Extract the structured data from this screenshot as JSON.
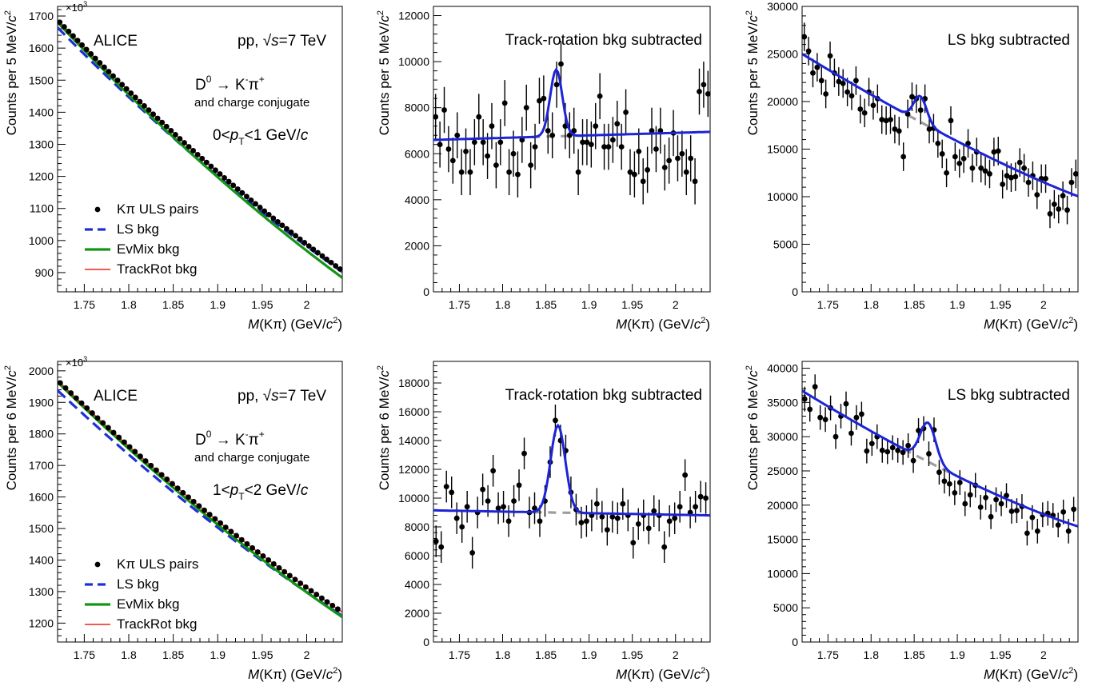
{
  "figure": {
    "label": "ALICE"
  },
  "panel_text": {
    "collision": "pp,",
    "energy": "s=7 TeV",
    "decay_d": "D",
    "decay_d_sup": "0",
    "decay_arrow": "→ K",
    "decay_k_sup": "-",
    "decay_pi": "π",
    "decay_pi_sup": "+",
    "conjugate": "and charge conjugate",
    "pt_bins": [
      [
        "0<",
        "p",
        "T",
        "<1 GeV/",
        "c"
      ],
      [
        "1<",
        "p",
        "T",
        "<2 GeV/",
        "c"
      ]
    ],
    "legend": [
      "Kπ ULS pairs",
      "LS bkg",
      "EvMix bkg",
      "TrackRot bkg"
    ],
    "x_axis": [
      "M",
      "(Kπ) (GeV/",
      "c",
      "2",
      ")"
    ],
    "y_axis_row1": [
      "Counts per 5 MeV/",
      "c",
      "2"
    ],
    "y_axis_row2": [
      "Counts per 6 MeV/",
      "c",
      "2"
    ],
    "exponent": "×10",
    "exponent_sup": "3",
    "track_rotation": "Track-rotation bkg subtracted",
    "ls": "LS bkg subtracted"
  },
  "chart_data": [
    {
      "type": "scatter",
      "title": "",
      "xlabel": "M(Kπ) (GeV/c2)",
      "ylabel": "Counts per 5 MeV/c2",
      "y_multiplier": "×10^3",
      "xlim": [
        1.72,
        2.04
      ],
      "ylim": [
        840,
        1730
      ],
      "x_ticks": [
        "1.75",
        "1.8",
        "1.85",
        "1.9",
        "1.95",
        "2"
      ],
      "y_ticks": [
        "900",
        "1000",
        "1100",
        "1200",
        "1300",
        "1400",
        "1500",
        "1600",
        "1700"
      ],
      "curve_model": {
        "kind": "poly2",
        "x0": 1.72,
        "y0": 1688,
        "y1": 906,
        "c": 1500
      },
      "series": [
        {
          "name": "Kπ ULS pairs",
          "style": "points",
          "color": "#000000",
          "x_start": 1.7225,
          "x_step": 0.005,
          "count": 64
        },
        {
          "name": "LS bkg",
          "style": "dashed",
          "color": "#1f2fd6",
          "y_offset_start": -24,
          "y_offset_end": -4
        },
        {
          "name": "EvMix bkg",
          "style": "solid",
          "color": "#129612",
          "y_offset_start": -8,
          "y_offset_end": -22
        },
        {
          "name": "TrackRot bkg",
          "style": "solid",
          "color": "#e8251c",
          "y_offset_start": 0,
          "y_offset_end": 0
        }
      ],
      "text_lines": [
        "ALICE",
        "pp, √s=7 TeV",
        "D0 → K-π+",
        "and charge conjugate",
        "0<pT<1 GeV/c"
      ]
    },
    {
      "type": "scatter",
      "title": "Track-rotation bkg subtracted",
      "xlabel": "M(Kπ) (GeV/c2)",
      "ylabel": "Counts per 5 MeV/c2",
      "xlim": [
        1.72,
        2.04
      ],
      "ylim": [
        0,
        12400
      ],
      "x_ticks": [
        "1.75",
        "1.8",
        "1.85",
        "1.9",
        "1.95",
        "2"
      ],
      "y_ticks": [
        "0",
        "2000",
        "4000",
        "6000",
        "8000",
        "10000",
        "12000"
      ],
      "x": [
        1.7225,
        1.7275,
        1.7325,
        1.7375,
        1.7425,
        1.7475,
        1.7525,
        1.7575,
        1.7625,
        1.7675,
        1.7725,
        1.7775,
        1.7825,
        1.7875,
        1.7925,
        1.7975,
        1.8025,
        1.8075,
        1.8125,
        1.8175,
        1.8225,
        1.8275,
        1.8325,
        1.8375,
        1.8425,
        1.8475,
        1.8525,
        1.8575,
        1.8625,
        1.8675,
        1.8725,
        1.8775,
        1.8825,
        1.8875,
        1.8925,
        1.8975,
        1.9025,
        1.9075,
        1.9125,
        1.9175,
        1.9225,
        1.9275,
        1.9325,
        1.9375,
        1.9425,
        1.9475,
        1.9525,
        1.9575,
        1.9625,
        1.9675,
        1.9725,
        1.9775,
        1.9825,
        1.9875,
        1.9925,
        1.9975,
        2.0025,
        2.0075,
        2.0125,
        2.0175,
        2.0225,
        2.0275,
        2.0325,
        2.0375
      ],
      "y": [
        7600,
        6400,
        7900,
        6200,
        5700,
        6800,
        5200,
        6100,
        5200,
        6500,
        7600,
        6500,
        5900,
        7200,
        5500,
        6500,
        8200,
        5200,
        6000,
        5100,
        6600,
        8000,
        5500,
        6300,
        8300,
        8400,
        7000,
        6800,
        9000,
        9900,
        7200,
        6800,
        7000,
        5200,
        6500,
        6500,
        6400,
        7200,
        8500,
        6300,
        6300,
        6600,
        7300,
        6300,
        7800,
        5200,
        5100,
        6100,
        4800,
        5300,
        7000,
        6200,
        7000,
        5400,
        5700,
        6900,
        5800,
        6000,
        5200,
        5800,
        4800,
        8700,
        9000,
        8600
      ],
      "err": 1000,
      "series": [
        {
          "name": "fit",
          "style": "solid",
          "color": "#1c24d6",
          "bkg_at_min": 6600,
          "bkg_at_max": 6950,
          "peak_mean": 1.862,
          "peak_sigma": 0.007,
          "peak_height": 2900
        },
        {
          "name": "background",
          "style": "dashed",
          "color": "#9e9e9e"
        }
      ]
    },
    {
      "type": "scatter",
      "title": "LS bkg subtracted",
      "xlabel": "M(Kπ) (GeV/c2)",
      "ylabel": "Counts per 5 MeV/c2",
      "xlim": [
        1.72,
        2.04
      ],
      "ylim": [
        0,
        30000
      ],
      "x_ticks": [
        "1.75",
        "1.8",
        "1.85",
        "1.9",
        "1.95",
        "2"
      ],
      "y_ticks": [
        "0",
        "5000",
        "10000",
        "15000",
        "20000",
        "25000",
        "30000"
      ],
      "x": [
        1.7225,
        1.7275,
        1.7325,
        1.7375,
        1.7425,
        1.7475,
        1.7525,
        1.7575,
        1.7625,
        1.7675,
        1.7725,
        1.7775,
        1.7825,
        1.7875,
        1.7925,
        1.7975,
        1.8025,
        1.8075,
        1.8125,
        1.8175,
        1.8225,
        1.8275,
        1.8325,
        1.8375,
        1.8425,
        1.8475,
        1.8525,
        1.8575,
        1.8625,
        1.8675,
        1.8725,
        1.8775,
        1.8825,
        1.8875,
        1.8925,
        1.8975,
        1.9025,
        1.9075,
        1.9125,
        1.9175,
        1.9225,
        1.9275,
        1.9325,
        1.9375,
        1.9425,
        1.9475,
        1.9525,
        1.9575,
        1.9625,
        1.9675,
        1.9725,
        1.9775,
        1.9825,
        1.9875,
        1.9925,
        1.9975,
        2.0025,
        2.0075,
        2.0125,
        2.0175,
        2.0225,
        2.0275,
        2.0325,
        2.0375
      ],
      "y": [
        26800,
        25300,
        23000,
        23600,
        22200,
        20800,
        24800,
        23000,
        22100,
        21900,
        21000,
        20600,
        22200,
        19200,
        18800,
        21000,
        19600,
        20300,
        18100,
        18000,
        18100,
        17100,
        16900,
        14200,
        18700,
        20500,
        20300,
        19100,
        20300,
        17100,
        17200,
        15600,
        14500,
        12500,
        18000,
        14200,
        13500,
        14000,
        15600,
        13000,
        14700,
        13000,
        12700,
        12400,
        14700,
        14800,
        11300,
        12200,
        12000,
        12100,
        13600,
        13000,
        11500,
        12200,
        10200,
        11900,
        11900,
        8200,
        9200,
        8700,
        10100,
        8600,
        11500,
        12400
      ],
      "err": 1500,
      "series": [
        {
          "name": "fit",
          "style": "solid",
          "color": "#1c24d6",
          "bkg_at_min": 25000,
          "bkg_at_max": 10050,
          "bkg_shape": 0.94,
          "peak_mean": 1.857,
          "peak_sigma": 0.0075,
          "peak_height": 2700
        },
        {
          "name": "background",
          "style": "dashed",
          "color": "#9e9e9e"
        }
      ]
    },
    {
      "type": "scatter",
      "title": "",
      "xlabel": "M(Kπ) (GeV/c2)",
      "ylabel": "Counts per 6 MeV/c2",
      "y_multiplier": "×10^3",
      "xlim": [
        1.72,
        2.04
      ],
      "ylim": [
        1140,
        2030
      ],
      "x_ticks": [
        "1.75",
        "1.8",
        "1.85",
        "1.9",
        "1.95",
        "2"
      ],
      "y_ticks": [
        "1200",
        "1300",
        "1400",
        "1500",
        "1600",
        "1700",
        "1800",
        "1900",
        "2000"
      ],
      "curve_model": {
        "kind": "poly2",
        "x0": 1.72,
        "y0": 1970,
        "y1": 1235,
        "c": 1100
      },
      "series": [
        {
          "name": "Kπ ULS pairs",
          "style": "points",
          "color": "#000000",
          "x_start": 1.723,
          "x_step": 0.006,
          "count": 54
        },
        {
          "name": "LS bkg",
          "style": "dashed",
          "color": "#1f2fd6",
          "y_offset_start": -32,
          "y_offset_end": -12
        },
        {
          "name": "EvMix bkg",
          "style": "solid",
          "color": "#129612",
          "y_offset_start": -6,
          "y_offset_end": -16
        },
        {
          "name": "TrackRot bkg",
          "style": "solid",
          "color": "#e8251c",
          "y_offset_start": 0,
          "y_offset_end": 0
        }
      ],
      "text_lines": [
        "ALICE",
        "pp, √s=7 TeV",
        "D0 → K-π+",
        "and charge conjugate",
        "1<pT<2 GeV/c"
      ]
    },
    {
      "type": "scatter",
      "title": "Track-rotation bkg subtracted",
      "xlabel": "M(Kπ) (GeV/c2)",
      "ylabel": "Counts per 6 MeV/c2",
      "xlim": [
        1.72,
        2.04
      ],
      "ylim": [
        0,
        19500
      ],
      "x_ticks": [
        "1.75",
        "1.8",
        "1.85",
        "1.9",
        "1.95",
        "2"
      ],
      "y_ticks": [
        "0",
        "2000",
        "4000",
        "6000",
        "8000",
        "10000",
        "12000",
        "14000",
        "16000",
        "18000"
      ],
      "x": [
        1.723,
        1.729,
        1.735,
        1.741,
        1.747,
        1.753,
        1.759,
        1.765,
        1.771,
        1.777,
        1.783,
        1.789,
        1.795,
        1.801,
        1.807,
        1.813,
        1.819,
        1.825,
        1.831,
        1.837,
        1.843,
        1.849,
        1.855,
        1.861,
        1.867,
        1.873,
        1.879,
        1.885,
        1.891,
        1.897,
        1.903,
        1.909,
        1.915,
        1.921,
        1.927,
        1.933,
        1.939,
        1.945,
        1.951,
        1.957,
        1.963,
        1.969,
        1.975,
        1.981,
        1.987,
        1.993,
        1.999,
        2.005,
        2.011,
        2.017,
        2.023,
        2.029,
        2.035,
        2.041
      ],
      "y": [
        7000,
        6600,
        10800,
        10400,
        8600,
        8000,
        9400,
        6200,
        9000,
        10600,
        9800,
        11900,
        9300,
        9400,
        8400,
        9800,
        10900,
        13100,
        9000,
        9300,
        8400,
        9800,
        12500,
        15400,
        14000,
        13300,
        10400,
        9200,
        8300,
        8400,
        8800,
        9600,
        8700,
        7800,
        8700,
        8600,
        9600,
        8800,
        6900,
        8200,
        8800,
        7900,
        9100,
        8800,
        6600,
        8400,
        8600,
        9400,
        11600,
        9000,
        9400,
        10100,
        10000,
        9300
      ],
      "err": 1100,
      "series": [
        {
          "name": "fit",
          "style": "solid",
          "color": "#1c24d6",
          "bkg_at_min": 9150,
          "bkg_at_max": 8800,
          "peak_mean": 1.864,
          "peak_sigma": 0.0085,
          "peak_height": 6050
        },
        {
          "name": "background",
          "style": "dashed",
          "color": "#9e9e9e"
        }
      ]
    },
    {
      "type": "scatter",
      "title": "LS bkg subtracted",
      "xlabel": "M(Kπ) (GeV/c2)",
      "ylabel": "Counts per 6 MeV/c2",
      "xlim": [
        1.72,
        2.04
      ],
      "ylim": [
        0,
        41000
      ],
      "x_ticks": [
        "1.75",
        "1.8",
        "1.85",
        "1.9",
        "1.95",
        "2"
      ],
      "y_ticks": [
        "0",
        "5000",
        "10000",
        "15000",
        "20000",
        "25000",
        "30000",
        "35000",
        "40000"
      ],
      "x": [
        1.723,
        1.729,
        1.735,
        1.741,
        1.747,
        1.753,
        1.759,
        1.765,
        1.771,
        1.777,
        1.783,
        1.789,
        1.795,
        1.801,
        1.807,
        1.813,
        1.819,
        1.825,
        1.831,
        1.837,
        1.843,
        1.849,
        1.855,
        1.861,
        1.867,
        1.873,
        1.879,
        1.885,
        1.891,
        1.897,
        1.903,
        1.909,
        1.915,
        1.921,
        1.927,
        1.933,
        1.939,
        1.945,
        1.951,
        1.957,
        1.963,
        1.969,
        1.975,
        1.981,
        1.987,
        1.993,
        1.999,
        2.005,
        2.011,
        2.017,
        2.023,
        2.029,
        2.035,
        2.041
      ],
      "y": [
        35500,
        34000,
        37300,
        32800,
        32500,
        34200,
        30000,
        33000,
        34800,
        30500,
        32800,
        33300,
        27900,
        29000,
        30000,
        28000,
        27800,
        28400,
        28000,
        27700,
        28700,
        26500,
        30900,
        31200,
        27500,
        31000,
        24800,
        23500,
        23100,
        21800,
        23300,
        20200,
        21500,
        22900,
        19700,
        21100,
        18300,
        20800,
        20200,
        21400,
        19100,
        19200,
        19800,
        15900,
        18200,
        16200,
        18600,
        18800,
        18500,
        17100,
        19000,
        16200,
        19400,
        17700
      ],
      "err": 1800,
      "series": [
        {
          "name": "fit",
          "style": "solid",
          "color": "#1c24d6",
          "bkg_at_min": 36700,
          "bkg_at_max": 16900,
          "bkg_shape": 0.92,
          "peak_mean": 1.866,
          "peak_sigma": 0.009,
          "peak_height": 5700
        },
        {
          "name": "background",
          "style": "dashed",
          "color": "#9e9e9e"
        }
      ]
    }
  ]
}
